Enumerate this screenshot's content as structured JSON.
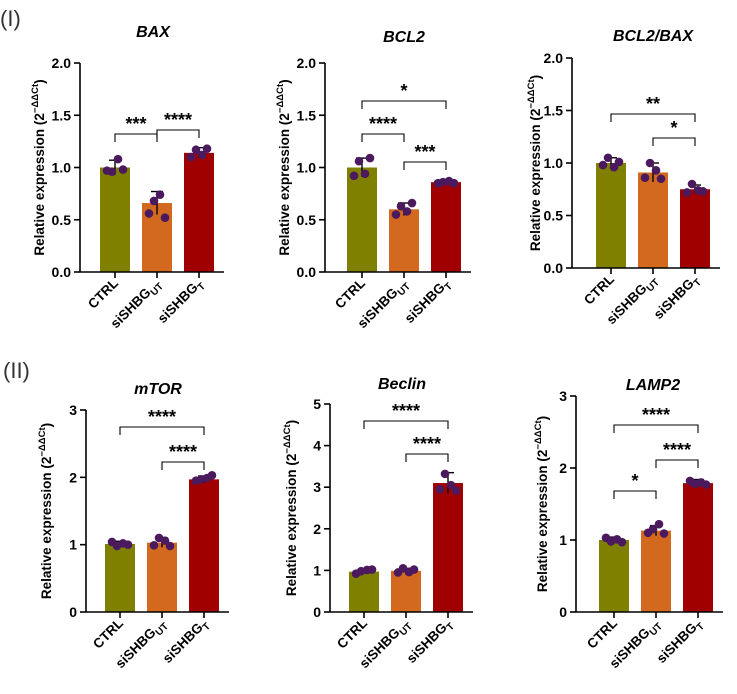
{
  "panels": [
    {
      "label": "(I)"
    },
    {
      "label": "(II)"
    }
  ],
  "colors": {
    "bars": [
      "#808000",
      "#d2691e",
      "#a00000"
    ],
    "dots": "#4b1a5e",
    "axis": "#000000"
  },
  "chart_data": [
    {
      "type": "bar",
      "title": "BAX",
      "ylabel_main": "Relative expression (2",
      "ylabel_sup": "−ΔΔCt",
      "ylabel_close": ")",
      "categories": [
        {
          "main": "CTRL",
          "sub": ""
        },
        {
          "main": "siSHBG",
          "sub": "UT"
        },
        {
          "main": "siSHBG",
          "sub": "T"
        }
      ],
      "values": [
        1.0,
        0.66,
        1.14
      ],
      "errors": [
        0.07,
        0.11,
        0.05
      ],
      "points": [
        [
          0.97,
          0.96,
          1.08,
          0.98
        ],
        [
          0.56,
          0.68,
          0.74,
          0.52
        ],
        [
          1.1,
          1.17,
          1.12,
          1.18
        ]
      ],
      "ylim": [
        0,
        2.0
      ],
      "yticks": [
        "0.0",
        "0.5",
        "1.0",
        "1.5",
        "2.0"
      ],
      "significance": [
        {
          "from": 0,
          "to": 1,
          "label": "***"
        },
        {
          "from": 1,
          "to": 2,
          "label": "****"
        }
      ]
    },
    {
      "type": "bar",
      "title": "BCL2",
      "ylabel_main": "Relative expression (2",
      "ylabel_sup": "−ΔΔCt",
      "ylabel_close": ")",
      "categories": [
        {
          "main": "CTRL",
          "sub": ""
        },
        {
          "main": "siSHBG",
          "sub": "UT"
        },
        {
          "main": "siSHBG",
          "sub": "T"
        }
      ],
      "values": [
        1.0,
        0.6,
        0.86
      ],
      "errors": [
        0.09,
        0.06,
        0.02
      ],
      "points": [
        [
          0.92,
          1.06,
          0.94,
          1.09
        ],
        [
          0.55,
          0.63,
          0.58,
          0.66
        ],
        [
          0.85,
          0.86,
          0.87,
          0.85
        ]
      ],
      "ylim": [
        0,
        2.0
      ],
      "yticks": [
        "0.0",
        "0.5",
        "1.0",
        "1.5",
        "2.0"
      ],
      "significance": [
        {
          "from": 0,
          "to": 2,
          "label": "*"
        },
        {
          "from": 0,
          "to": 1,
          "label": "****"
        },
        {
          "from": 1,
          "to": 2,
          "label": "***"
        }
      ]
    },
    {
      "type": "bar",
      "title": "BCL2/BAX",
      "ylabel_main": "Relative expression (2",
      "ylabel_sup": "−ΔΔCt",
      "ylabel_close": ")",
      "categories": [
        {
          "main": "CTRL",
          "sub": ""
        },
        {
          "main": "siSHBG",
          "sub": "UT"
        },
        {
          "main": "siSHBG",
          "sub": "T"
        }
      ],
      "values": [
        1.0,
        0.91,
        0.75
      ],
      "errors": [
        0.05,
        0.09,
        0.04
      ],
      "points": [
        [
          0.98,
          1.05,
          0.96,
          1.01
        ],
        [
          0.86,
          1.0,
          0.93,
          0.85
        ],
        [
          0.72,
          0.8,
          0.74,
          0.73
        ]
      ],
      "ylim": [
        0,
        2.0
      ],
      "yticks": [
        "0.0",
        "0.5",
        "1.0",
        "1.5",
        "2.0"
      ],
      "significance": [
        {
          "from": 0,
          "to": 2,
          "label": "**"
        },
        {
          "from": 1,
          "to": 2,
          "label": "*"
        }
      ]
    },
    {
      "type": "bar",
      "title": "mTOR",
      "ylabel_main": "Relative expression (2",
      "ylabel_sup": "−ΔΔCt",
      "ylabel_close": ")",
      "categories": [
        {
          "main": "CTRL",
          "sub": ""
        },
        {
          "main": "siSHBG",
          "sub": "UT"
        },
        {
          "main": "siSHBG",
          "sub": "T"
        }
      ],
      "values": [
        1.01,
        1.03,
        1.97
      ],
      "errors": [
        0.04,
        0.07,
        0.05
      ],
      "points": [
        [
          1.04,
          0.98,
          1.02,
          1.0
        ],
        [
          0.99,
          1.1,
          1.06,
          0.98
        ],
        [
          1.95,
          1.97,
          1.99,
          2.03
        ]
      ],
      "ylim": [
        0,
        3
      ],
      "yticks": [
        "0",
        "1",
        "2",
        "3"
      ],
      "significance": [
        {
          "from": 0,
          "to": 2,
          "label": "****"
        },
        {
          "from": 1,
          "to": 2,
          "label": "****"
        }
      ]
    },
    {
      "type": "bar",
      "title": "Beclin",
      "ylabel_main": "Relative expression (2",
      "ylabel_sup": "−ΔΔCt",
      "ylabel_close": ")",
      "categories": [
        {
          "main": "CTRL",
          "sub": ""
        },
        {
          "main": "siSHBG",
          "sub": "UT"
        },
        {
          "main": "siSHBG",
          "sub": "T"
        }
      ],
      "values": [
        0.97,
        0.99,
        3.1
      ],
      "errors": [
        0.05,
        0.06,
        0.25
      ],
      "points": [
        [
          0.92,
          0.98,
          1.01,
          1.02
        ],
        [
          0.95,
          1.05,
          0.96,
          1.02
        ],
        [
          2.95,
          3.32,
          3.05,
          2.92
        ]
      ],
      "ylim": [
        0,
        5
      ],
      "yticks": [
        "0",
        "1",
        "2",
        "3",
        "4",
        "5"
      ],
      "significance": [
        {
          "from": 0,
          "to": 2,
          "label": "****"
        },
        {
          "from": 1,
          "to": 2,
          "label": "****"
        }
      ]
    },
    {
      "type": "bar",
      "title": "LAMP2",
      "ylabel_main": "Relative expression (2",
      "ylabel_sup": "−ΔΔCt",
      "ylabel_close": ")",
      "categories": [
        {
          "main": "CTRL",
          "sub": ""
        },
        {
          "main": "siSHBG",
          "sub": "UT"
        },
        {
          "main": "siSHBG",
          "sub": "T"
        }
      ],
      "values": [
        1.0,
        1.13,
        1.79
      ],
      "errors": [
        0.04,
        0.07,
        0.05
      ],
      "points": [
        [
          1.03,
          0.98,
          1.01,
          0.97
        ],
        [
          1.1,
          1.15,
          1.22,
          1.09
        ],
        [
          1.82,
          1.78,
          1.8,
          1.77
        ]
      ],
      "ylim": [
        0,
        3
      ],
      "yticks": [
        "0",
        "1",
        "2",
        "3"
      ],
      "significance": [
        {
          "from": 0,
          "to": 1,
          "label": "*"
        },
        {
          "from": 0,
          "to": 2,
          "label": "****"
        },
        {
          "from": 1,
          "to": 2,
          "label": "****"
        }
      ]
    }
  ]
}
